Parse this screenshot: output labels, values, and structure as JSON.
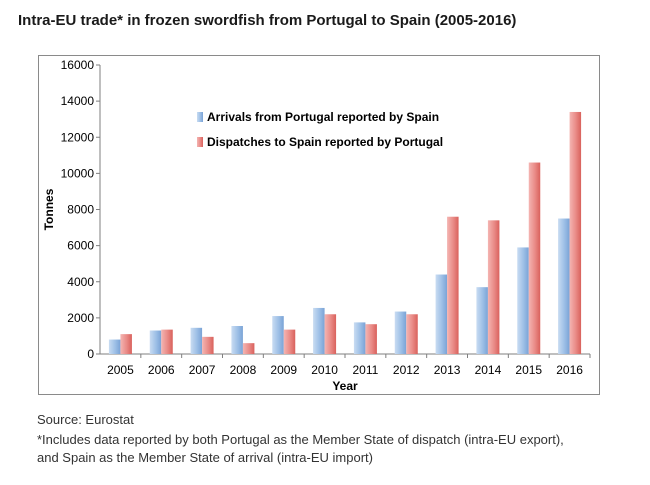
{
  "page": {
    "title": "Intra-EU trade* in frozen swordfish from Portugal to Spain (2005-2016)",
    "source": "Source: Eurostat",
    "footnote_line1": "*Includes data reported by both Portugal as the Member State of dispatch (intra-EU export),",
    "footnote_line2": "and Spain as the Member State of arrival (intra-EU import)"
  },
  "chart_data": {
    "type": "bar",
    "xlabel": "Year",
    "ylabel": "Tonnes",
    "ylim": [
      0,
      16000
    ],
    "yticks": [
      0,
      2000,
      4000,
      6000,
      8000,
      10000,
      12000,
      14000,
      16000
    ],
    "grid": false,
    "legend_position": "upper-left inside",
    "categories": [
      "2005",
      "2006",
      "2007",
      "2008",
      "2009",
      "2010",
      "2011",
      "2012",
      "2013",
      "2014",
      "2015",
      "2016"
    ],
    "series": [
      {
        "name": "Arrivals from Portugal reported by Spain",
        "color": "#8db3e2",
        "values": [
          800,
          1300,
          1450,
          1550,
          2100,
          2550,
          1750,
          2350,
          4400,
          3700,
          5900,
          7500
        ]
      },
      {
        "name": "Dispatches to Spain reported by Portugal",
        "color": "#e46c6c",
        "values": [
          1100,
          1350,
          950,
          600,
          1350,
          2200,
          1650,
          2200,
          7600,
          7400,
          10600,
          13400
        ]
      }
    ]
  }
}
